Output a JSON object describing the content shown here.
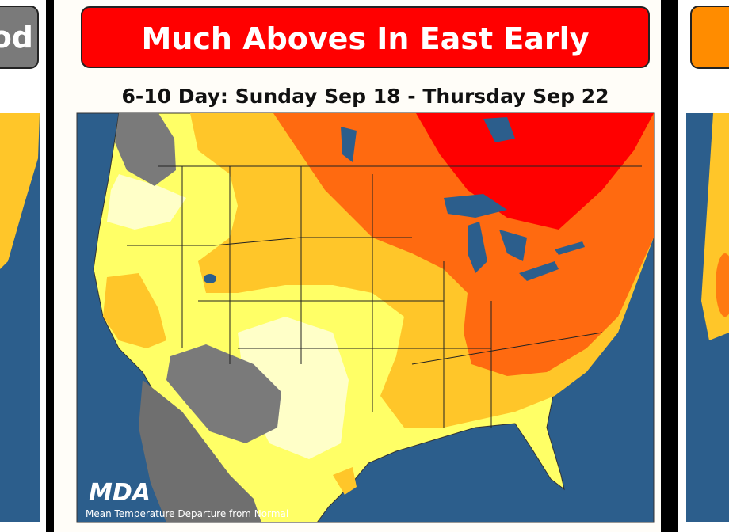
{
  "left_card": {
    "header": "od"
  },
  "main_card": {
    "header": "Much Aboves In East Early",
    "subtitle": "6-10 Day: Sunday Sep 18 - Thursday Sep 22",
    "map": {
      "logo": "MDA",
      "caption": "Mean Temperature Departure from Normal"
    }
  }
}
